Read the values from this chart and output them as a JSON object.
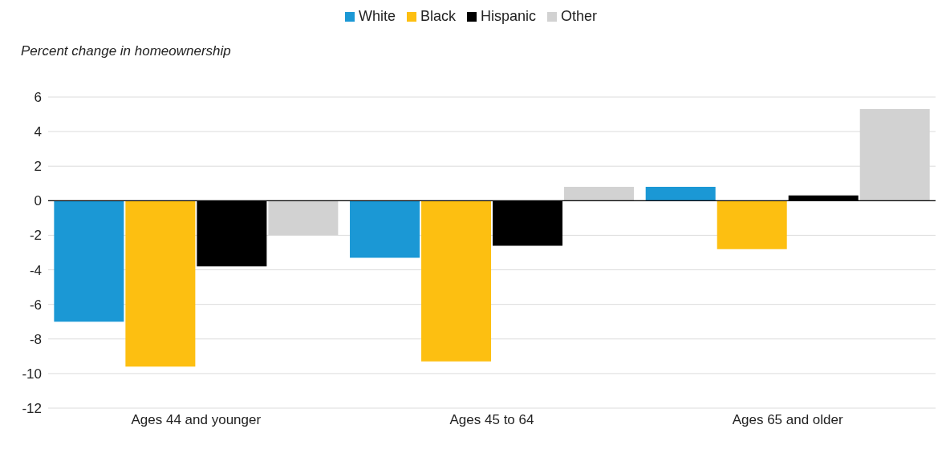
{
  "chart_data": {
    "type": "bar",
    "ylabel": "Percent change in homeownership",
    "categories": [
      "Ages 44 and younger",
      "Ages 45 to 64",
      "Ages 65 and older"
    ],
    "series": [
      {
        "name": "White",
        "color": "#1b98d5",
        "values": [
          -7.0,
          -3.3,
          0.8
        ]
      },
      {
        "name": "Black",
        "color": "#fdbf11",
        "values": [
          -9.6,
          -9.3,
          -2.8
        ]
      },
      {
        "name": "Hispanic",
        "color": "#000000",
        "values": [
          -3.8,
          -2.6,
          0.3
        ]
      },
      {
        "name": "Other",
        "color": "#d2d2d2",
        "values": [
          -2.0,
          0.8,
          5.3
        ]
      }
    ],
    "ylim": [
      -12,
      6
    ],
    "yticks": [
      -12,
      -10,
      -8,
      -6,
      -4,
      -2,
      0,
      2,
      4,
      6
    ],
    "grid": "y",
    "legend": "top"
  }
}
